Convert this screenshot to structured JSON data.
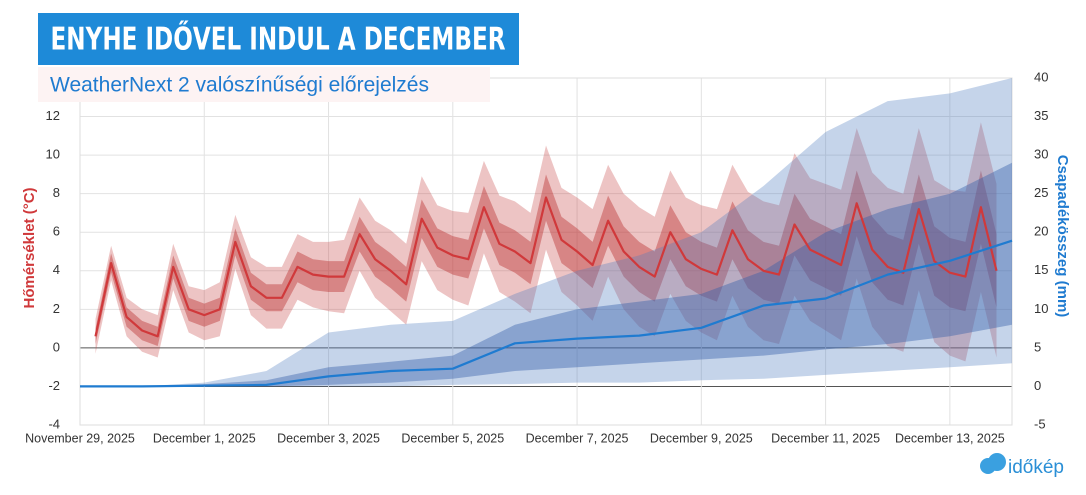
{
  "chart_data": {
    "type": "line",
    "title": "ENYHE IDŐVEL INDUL A DECEMBER",
    "subtitle": "WeatherNext 2 valószínűségi előrejelzés",
    "y_label": "Hőmérséklet (°C)",
    "y2_label": "Csapadékösszeg (mm)",
    "brand": "időkép",
    "xlim": [
      0,
      15
    ],
    "xticks": [
      {
        "value": 0,
        "label": "November 29, 2025"
      },
      {
        "value": 2,
        "label": "December 1, 2025"
      },
      {
        "value": 4,
        "label": "December 3, 2025"
      },
      {
        "value": 6,
        "label": "December 5, 2025"
      },
      {
        "value": 8,
        "label": "December 7, 2025"
      },
      {
        "value": 10,
        "label": "December 9, 2025"
      },
      {
        "value": 12,
        "label": "December 11, 2025"
      },
      {
        "value": 14,
        "label": "December 13, 2025"
      }
    ],
    "ylim": [
      -4,
      14
    ],
    "yticks": [
      -4,
      -2,
      0,
      2,
      4,
      6,
      8,
      10,
      12
    ],
    "y2lim": [
      -5,
      40
    ],
    "y2ticks": [
      -5,
      0,
      5,
      10,
      15,
      20,
      25,
      30,
      35,
      40
    ],
    "grid": true,
    "temperature": {
      "axis": "y",
      "color": "#d0393b",
      "x": [
        0.25,
        0.5,
        0.75,
        1,
        1.25,
        1.5,
        1.75,
        2,
        2.25,
        2.5,
        2.75,
        3,
        3.25,
        3.5,
        3.75,
        4,
        4.25,
        4.5,
        4.75,
        5,
        5.25,
        5.5,
        5.75,
        6,
        6.25,
        6.5,
        6.75,
        7,
        7.25,
        7.5,
        7.75,
        8,
        8.25,
        8.5,
        8.75,
        9,
        9.25,
        9.5,
        9.75,
        10,
        10.25,
        10.5,
        10.75,
        11,
        11.25,
        11.5,
        11.75,
        12,
        12.25,
        12.5,
        12.75,
        13,
        13.25,
        13.5,
        13.75,
        14,
        14.25,
        14.5,
        14.75
      ],
      "values": [
        0.6,
        4.4,
        1.6,
        0.9,
        0.6,
        4.2,
        2.0,
        1.7,
        2.0,
        5.5,
        3.2,
        2.6,
        2.6,
        4.2,
        3.8,
        3.7,
        3.7,
        5.9,
        4.6,
        4.0,
        3.3,
        6.7,
        5.2,
        4.8,
        4.6,
        7.3,
        5.4,
        5.0,
        4.4,
        7.8,
        5.6,
        5.0,
        4.3,
        6.6,
        5.0,
        4.2,
        3.7,
        6.0,
        4.6,
        4.1,
        3.8,
        6.1,
        4.6,
        4.0,
        3.8,
        6.4,
        5.1,
        4.7,
        4.3,
        7.5,
        5.1,
        4.2,
        3.9,
        7.2,
        4.5,
        3.9,
        3.7,
        7.3,
        4.0
      ],
      "bands": [
        {
          "color": "rgba(200,70,70,0.32)",
          "lower": [
            -0.3,
            3.5,
            0.6,
            -0.2,
            -0.5,
            3.0,
            0.8,
            0.4,
            0.6,
            4.1,
            1.7,
            1.0,
            1.0,
            2.5,
            2.1,
            1.9,
            1.8,
            4.0,
            2.6,
            1.9,
            1.2,
            4.5,
            3.0,
            2.5,
            2.2,
            4.9,
            2.9,
            2.4,
            1.8,
            5.1,
            2.9,
            2.2,
            1.4,
            3.7,
            2.0,
            1.1,
            0.6,
            2.8,
            1.4,
            0.8,
            0.4,
            2.7,
            1.1,
            0.4,
            0.2,
            2.7,
            1.4,
            0.9,
            0.4,
            3.6,
            1.1,
            0.1,
            -0.2,
            3.0,
            0.3,
            -0.4,
            -0.7,
            2.9,
            -0.5
          ],
          "upper": [
            1.5,
            5.3,
            2.6,
            2.0,
            1.7,
            5.4,
            3.2,
            3.0,
            3.4,
            6.9,
            4.7,
            4.2,
            4.2,
            5.9,
            5.5,
            5.5,
            5.6,
            7.8,
            6.6,
            6.1,
            5.4,
            8.9,
            7.4,
            7.1,
            7.0,
            9.7,
            7.9,
            7.6,
            7.0,
            10.5,
            8.3,
            7.8,
            7.2,
            9.5,
            8.0,
            7.3,
            6.8,
            9.2,
            7.8,
            7.4,
            7.2,
            9.5,
            8.1,
            7.6,
            7.4,
            10.1,
            8.8,
            8.5,
            8.2,
            11.4,
            9.1,
            8.3,
            8.0,
            11.4,
            8.7,
            8.2,
            8.1,
            11.7,
            8.5
          ]
        },
        {
          "color": "rgba(185,45,45,0.42)",
          "lower": [
            0.2,
            3.9,
            1.1,
            0.4,
            0.1,
            3.6,
            1.4,
            1.1,
            1.4,
            4.8,
            2.5,
            1.9,
            1.9,
            3.4,
            3.0,
            2.9,
            2.9,
            5.0,
            3.7,
            3.1,
            2.4,
            5.7,
            4.2,
            3.8,
            3.6,
            6.2,
            4.3,
            3.9,
            3.3,
            6.6,
            4.4,
            3.8,
            3.1,
            5.3,
            3.7,
            2.9,
            2.4,
            4.6,
            3.2,
            2.7,
            2.4,
            4.6,
            3.1,
            2.5,
            2.3,
            4.8,
            3.5,
            3.1,
            2.7,
            5.8,
            3.4,
            2.5,
            2.2,
            5.4,
            2.7,
            2.1,
            1.9,
            5.4,
            2.1
          ],
          "upper": [
            1.0,
            4.9,
            2.1,
            1.4,
            1.1,
            4.8,
            2.6,
            2.3,
            2.6,
            6.2,
            3.9,
            3.3,
            3.3,
            5.0,
            4.6,
            4.5,
            4.5,
            6.8,
            5.5,
            4.9,
            4.2,
            7.7,
            6.2,
            5.8,
            5.6,
            8.4,
            6.5,
            6.1,
            5.5,
            9.0,
            6.8,
            6.2,
            5.5,
            7.9,
            6.3,
            5.5,
            5.0,
            7.4,
            6.0,
            5.5,
            5.2,
            7.6,
            6.1,
            5.5,
            5.3,
            8.0,
            6.7,
            6.3,
            5.9,
            9.2,
            6.8,
            5.9,
            5.6,
            9.0,
            6.3,
            5.7,
            5.5,
            9.2,
            5.9
          ]
        }
      ]
    },
    "precipitation": {
      "axis": "y2",
      "color": "#1f7bd0",
      "x": [
        0,
        1,
        2,
        3,
        4,
        5,
        6,
        7,
        8,
        9,
        10,
        11,
        12,
        13,
        14,
        15
      ],
      "values": [
        0,
        0,
        0.1,
        0.2,
        1.3,
        2.0,
        2.3,
        5.6,
        6.2,
        6.6,
        7.6,
        10.5,
        11.4,
        14.5,
        16.3,
        18.9
      ],
      "bands": [
        {
          "color": "rgba(80,125,190,0.33)",
          "lower": [
            0,
            0,
            0,
            0,
            0,
            0,
            0.2,
            0.3,
            0.5,
            0.5,
            0.8,
            1.0,
            1.5,
            2.0,
            2.5,
            3.0
          ],
          "upper": [
            0,
            0,
            0.5,
            2.0,
            7.0,
            8.0,
            8.5,
            12.0,
            15.0,
            17.0,
            20.0,
            26.0,
            33.0,
            37.0,
            38.0,
            40.0
          ]
        },
        {
          "color": "rgba(55,95,170,0.42)",
          "lower": [
            0,
            0,
            0,
            0,
            0.2,
            0.5,
            1.0,
            2.0,
            2.5,
            3.0,
            3.5,
            4.0,
            4.8,
            5.5,
            6.5,
            8.0
          ],
          "upper": [
            0,
            0,
            0.3,
            0.8,
            2.5,
            3.2,
            4.0,
            8.0,
            10.0,
            11.0,
            12.0,
            15.0,
            20.0,
            23.0,
            25.0,
            29.0
          ]
        }
      ]
    }
  }
}
